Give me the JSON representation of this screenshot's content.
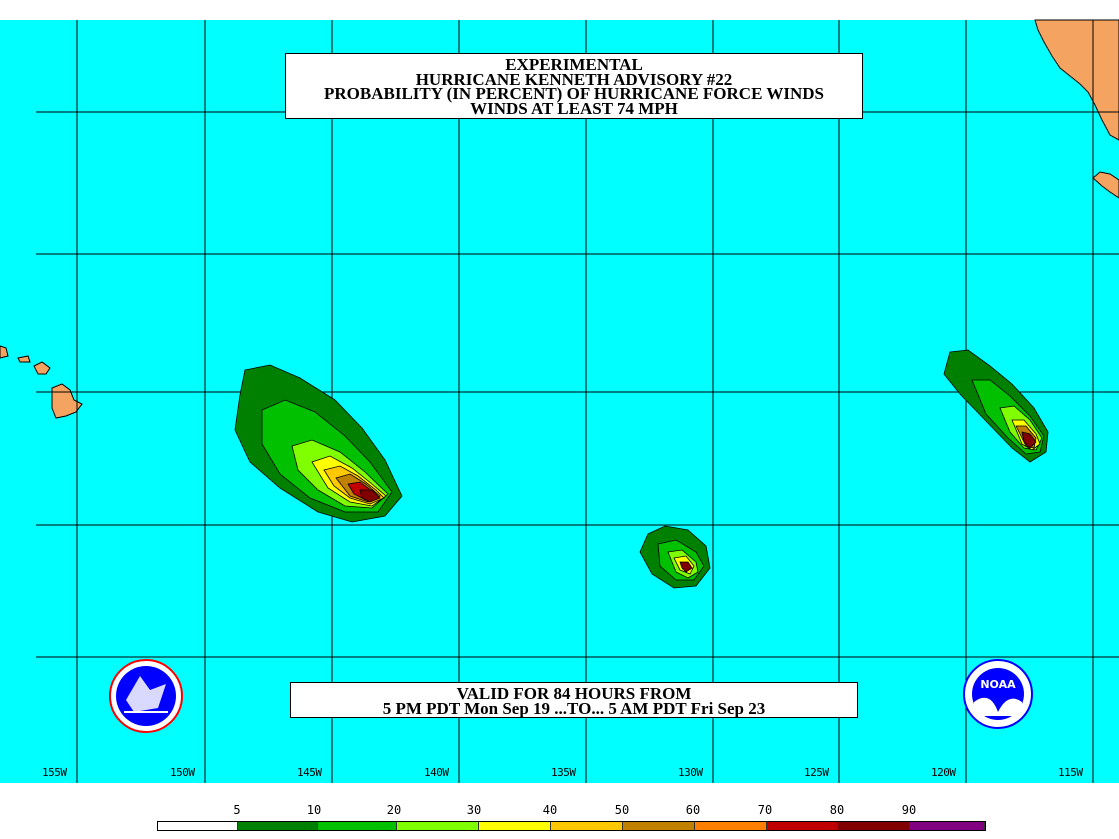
{
  "title": {
    "lines": [
      "EXPERIMENTAL",
      "HURRICANE KENNETH ADVISORY #22",
      "PROBABILITY (IN PERCENT) OF HURRICANE FORCE WINDS",
      "WINDS AT LEAST 74 MPH"
    ]
  },
  "valid": {
    "lines": [
      "VALID FOR 84 HOURS FROM",
      "5 PM PDT Mon Sep 19 ...TO... 5 AM PDT Fri Sep 23"
    ]
  },
  "longitude_labels": [
    "155W",
    "150W",
    "145W",
    "140W",
    "135W",
    "130W",
    "125W",
    "120W",
    "115W"
  ],
  "legend": {
    "values": [
      "5",
      "10",
      "20",
      "30",
      "40",
      "50",
      "60",
      "70",
      "80",
      "90"
    ],
    "colors": [
      "#ffffff",
      "#008000",
      "#00c000",
      "#80ff00",
      "#ffff00",
      "#ffc800",
      "#c08000",
      "#ff8000",
      "#c00000",
      "#800000",
      "#800080"
    ]
  },
  "map_colors": {
    "ocean": "#00ffff",
    "land": "#f4a460"
  },
  "logos": [
    "nws-logo",
    "noaa-logo"
  ]
}
